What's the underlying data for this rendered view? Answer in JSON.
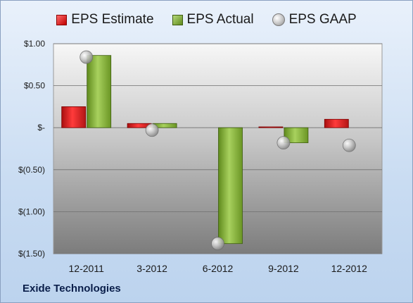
{
  "legend": {
    "estimate_label": "EPS Estimate",
    "actual_label": "EPS Actual",
    "gaap_label": "EPS GAAP"
  },
  "company": "Exide Technologies",
  "colors": {
    "estimate": "#d42a2a",
    "actual": "#8fb548",
    "gaap": "#bdbdbd"
  },
  "chart_data": {
    "type": "bar",
    "categories": [
      "12-2011",
      "3-2012",
      "6-2012",
      "9-2012",
      "12-2012"
    ],
    "series": [
      {
        "name": "EPS Estimate",
        "values": [
          0.25,
          0.05,
          null,
          0.01,
          0.1
        ]
      },
      {
        "name": "EPS Actual",
        "values": [
          0.86,
          0.05,
          -1.38,
          -0.18,
          null
        ]
      },
      {
        "name": "EPS GAAP",
        "type": "scatter",
        "values": [
          0.84,
          -0.03,
          -1.38,
          -0.18,
          -0.21
        ]
      }
    ],
    "ylim": [
      -1.5,
      1.0
    ],
    "yticks": [
      1.0,
      0.5,
      0.0,
      -0.5,
      -1.0,
      -1.5
    ],
    "ytick_labels": [
      "$1.00",
      "$0.50",
      "$-",
      "$(0.50)",
      "$(1.00)",
      "$(1.50)"
    ],
    "legend_position": "top",
    "grid": true
  }
}
